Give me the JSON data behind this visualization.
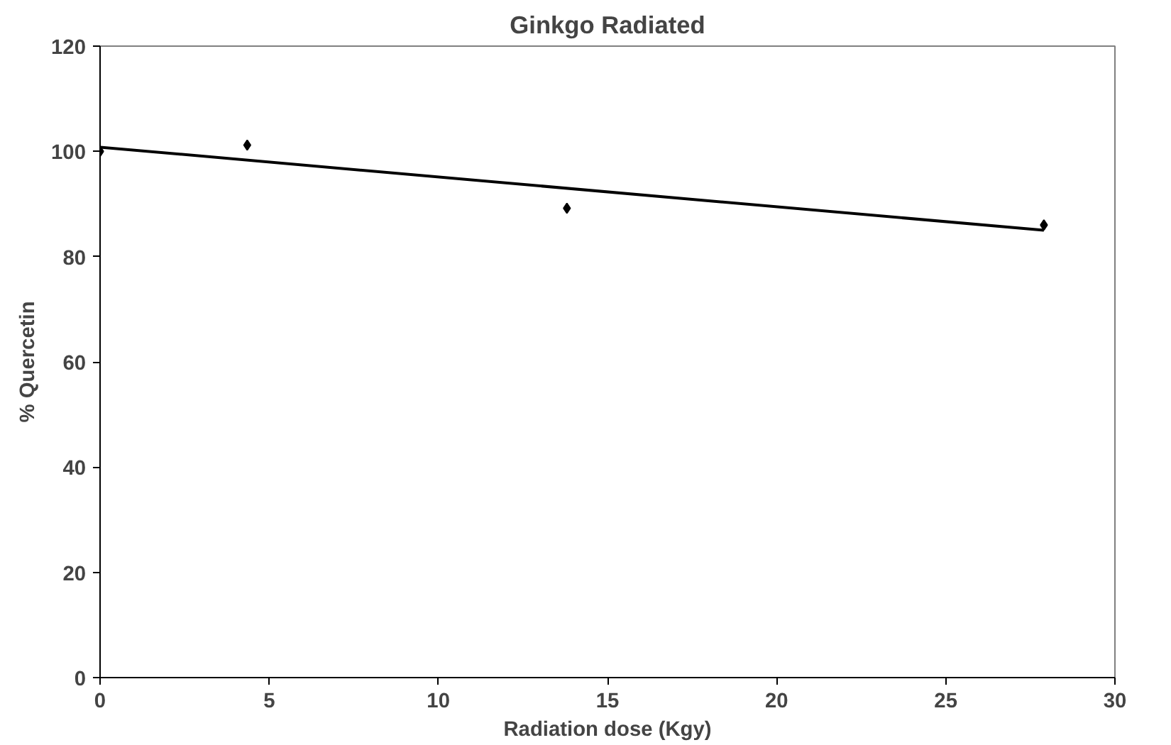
{
  "chart_data": {
    "type": "scatter",
    "title": "Ginkgo Radiated",
    "xlabel": "Radiation dose (Kgy)",
    "ylabel": "% Quercetin",
    "xlim": [
      0,
      30
    ],
    "ylim": [
      0,
      120
    ],
    "xticks": [
      0,
      5,
      10,
      15,
      20,
      25,
      30
    ],
    "yticks": [
      0,
      20,
      40,
      60,
      80,
      100,
      120
    ],
    "grid": false,
    "series": [
      {
        "color": "#000000",
        "x": [
          0,
          4.35,
          13.8,
          27.9
        ],
        "values": [
          100,
          101.2,
          89.2,
          86
        ],
        "marker": "diamond"
      },
      {
        "type": "line",
        "color": "#000000",
        "x": [
          0,
          27.9
        ],
        "values": [
          100.8,
          85
        ],
        "line_style": "solid",
        "marker": "none"
      }
    ]
  }
}
